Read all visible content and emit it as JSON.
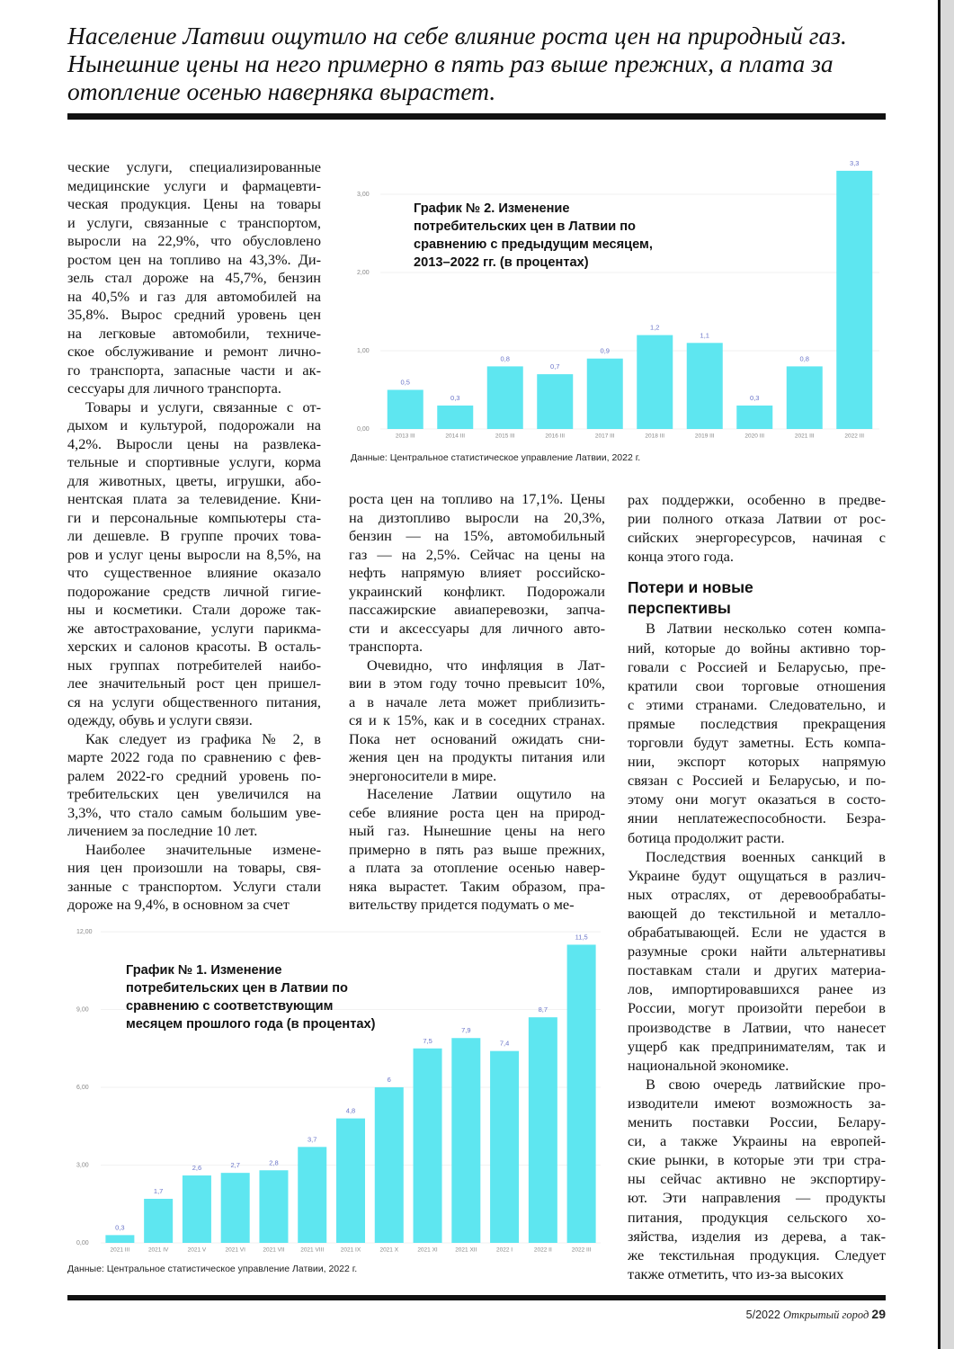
{
  "header": {
    "lead_lines": [
      "Население Латвии ощутило на себе влияние роста цен на природный газ.",
      "Нынешние цены на него примерно в пять раз выше прежних, а плата за",
      "отопление осенью наверняка вырастет."
    ]
  },
  "columns": [
    [
      {
        "lines": [
          "ческие услуги, специализированные",
          "медицинские услуги и фармацевти-",
          "ческая продукция. Цены на товары",
          "и услуги, связанные с транспортом,",
          "выросли на 22,9%, что обусловлено",
          "ростом цен на топливо на 43,3%. Ди-",
          "зель стал дороже на 45,7%, бензин",
          "на 40,5% и газ для автомобилей на",
          "35,8%. Вырос средний уровень цен",
          "на легковые автомобили, техниче-",
          "ское обслуживание и ремонт лично-",
          "го транспорта, запасные части и ак-",
          "сессуары для личного транспорта."
        ]
      },
      {
        "lines": [
          "Товары и услуги, связанные с от-",
          "дыхом и культурой, подорожали на",
          "4,2%. Выросли цены на развлека-",
          "тельные и спортивные услуги, корма",
          "для животных, цветы, игрушки, або-",
          "нентская плата за телевидение. Кни-",
          "ги и персональные компьютеры ста-",
          "ли дешевле. В группе прочих това-",
          "ров и услуг цены выросли на 8,5%, на",
          "что существенное влияние оказало",
          "подорожание средств личной гигие-",
          "ны и косметики. Стали дороже так-",
          "же автострахование, услуги парикма-",
          "херских и салонов красоты. В осталь-",
          "ных группах потребителей наибо-",
          "лее значительный рост цен пришел-",
          "ся на услуги общественного питания,",
          "одежду, обувь и услуги связи."
        ]
      },
      {
        "lines": [
          "Как следует из графика № 2, в",
          "марте 2022 года по сравнению с фев-",
          "ралем 2022-го средний уровень по-",
          "требительских цен увеличился на",
          "3,3%, что стало самым большим уве-",
          "личением за последние 10 лет."
        ]
      },
      {
        "lines": [
          "Наиболее значительные измене-",
          "ния цен произошли на товары, свя-",
          "занные с транспортом. Услуги стали",
          "дороже на 9,4%, в основном за счет"
        ]
      }
    ],
    [
      {
        "lines": [
          "роста цен на топливо на 17,1%. Цены",
          "на дизтопливо выросли на 20,3%,",
          "бензин — на 15%, автомобильный",
          "газ — на 2,5%. Сейчас на цены на",
          "нефть напрямую влияет российско-",
          "украинский конфликт. Подорожали",
          "пассажирские авиаперевозки, запча-",
          "сти и аксессуары для личного авто-",
          "транспорта."
        ]
      },
      {
        "lines": [
          "Очевидно, что инфляция в Лат-",
          "вии в этом году точно превысит 10%,",
          "а в начале лета может приблизить-",
          "ся и к 15%, как и в соседних странах.",
          "Пока нет оснований ожидать сни-",
          "жения цен на продукты питания или",
          "энергоносители в мире."
        ]
      },
      {
        "lines": [
          "Население Латвии ощутило на",
          "себе влияние роста цен на природ-",
          "ный газ. Нынешние цены на него",
          "примерно в пять раз выше прежних,",
          "а плата за отопление осенью навер-",
          "няка вырастет. Таким образом, пра-",
          "вительству придется подумать о ме-"
        ]
      }
    ],
    [
      {
        "lines": [
          "рах поддержки, особенно в предве-",
          "рии полного отказа Латвии от рос-",
          "сийских энергоресурсов, начиная с",
          "конца этого года."
        ]
      },
      {
        "heading": [
          "Потери и новые",
          "перспективы"
        ]
      },
      {
        "lines": [
          "В Латвии несколько сотен компа-",
          "ний, которые до войны активно тор-",
          "говали с Россией и Беларусью, пре-",
          "кратили свои торговые отношения",
          "с этими странами. Следовательно, и",
          "прямые последствия прекращения",
          "торговли будут заметны. Есть компа-",
          "нии, экспорт которых напрямую",
          "связан с Россией и Беларусью, и по-",
          "этому они могут оказаться в состо-",
          "янии неплатежеспособности. Безра-",
          "ботица продолжит расти."
        ]
      },
      {
        "lines": [
          "Последствия военных санкций в",
          "Украине будут ощущаться в различ-",
          "ных отраслях, от деревообрабаты-",
          "вающей до текстильной и металло-",
          "обрабатывающей. Если не удастся в",
          "разумные сроки найти альтернативы",
          "поставкам стали и других материа-",
          "лов, импортировавшихся ранее из",
          "России, могут произойти перебои в",
          "производстве в Латвии, что нанесет",
          "ущерб как предпринимателям, так и",
          "национальной экономике."
        ]
      },
      {
        "lines": [
          "В свою очередь латвийские про-",
          "изводители имеют возможность за-",
          "менить поставки России, Белару-",
          "си, а также Украины на европей-",
          "ские рынки, в которые эти три стра-",
          "ны сейчас активно не экспортиру-",
          "ют. Эти направления — продукты",
          "питания, продукция сельского хо-",
          "зяйства, изделия из дерева, а так-",
          "же текстильная продукция. Следует",
          "также отметить, что из-за высоких"
        ]
      }
    ]
  ],
  "chart_data": [
    {
      "type": "bar",
      "title": "График № 2. Изменение потребительских цен в Латвии по сравнению с предыдущим месяцем, 2013–2022 гг. (в процентах)",
      "categories": [
        "2013 III",
        "2014 III",
        "2015 III",
        "2016 III",
        "2017 III",
        "2018 III",
        "2019 III",
        "2020 III",
        "2021 III",
        "2022 III"
      ],
      "values": [
        0.5,
        0.3,
        0.8,
        0.7,
        0.9,
        1.2,
        1.1,
        0.3,
        0.8,
        3.3
      ],
      "value_labels": [
        "0,5",
        "0,3",
        "0,8",
        "0,7",
        "0,9",
        "1,2",
        "1,1",
        "0,3",
        "0,8",
        "3,3"
      ],
      "color": "#5ee6f0",
      "ylim": [
        0,
        3.4
      ],
      "yticks": [
        {
          "value": 0,
          "label": "0,00"
        },
        {
          "value": 1,
          "label": "1,00"
        },
        {
          "value": 2,
          "label": "2,00"
        },
        {
          "value": 3,
          "label": "3,00"
        }
      ],
      "grid": true,
      "source": "Данные: Центральное статистическое управление Латвии, 2022 г."
    },
    {
      "type": "bar",
      "title": "График № 1. Изменение потребительских цен в Латвии по сравнению с соответствующим месяцем прошлого года (в процентах)",
      "categories": [
        "2021 III",
        "2021 IV",
        "2021 V",
        "2021 VI",
        "2021 VII",
        "2021 VIII",
        "2021 IX",
        "2021 X",
        "2021 XI",
        "2021 XII",
        "2022 I",
        "2022 II",
        "2022 III"
      ],
      "values": [
        0.3,
        1.7,
        2.6,
        2.7,
        2.8,
        3.7,
        4.8,
        6,
        7.5,
        7.9,
        7.4,
        8.7,
        11.5
      ],
      "value_labels": [
        "0,3",
        "1,7",
        "2,6",
        "2,7",
        "2,8",
        "3,7",
        "4,8",
        "6",
        "7,5",
        "7,9",
        "7,4",
        "8,7",
        "11,5"
      ],
      "color": "#5ee6f0",
      "ylim": [
        0,
        12
      ],
      "yticks": [
        {
          "value": 0,
          "label": "0,00"
        },
        {
          "value": 3,
          "label": "3,00"
        },
        {
          "value": 6,
          "label": "6,00"
        },
        {
          "value": 9,
          "label": "9,00"
        },
        {
          "value": 12,
          "label": "12,00"
        }
      ],
      "grid": true,
      "source": "Данные: Центральное статистическое управление Латвии, 2022 г."
    }
  ],
  "footer": {
    "issue": "5/2022",
    "magazine": "Открытый город",
    "page_number": "29"
  }
}
